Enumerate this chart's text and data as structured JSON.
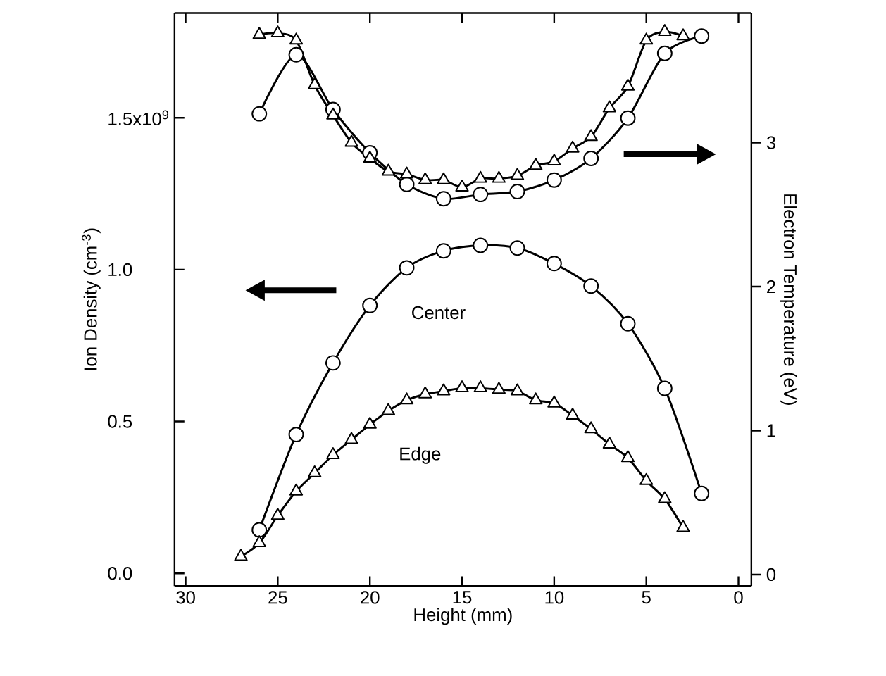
{
  "chart_data": {
    "type": "line",
    "xlabel": "Height (mm)",
    "ylabel": "Ion Density (cm$^{-3}$)",
    "y2label": "Electron Temperature (eV)",
    "xlim": [
      30.6,
      -0.7
    ],
    "xticks": [
      30,
      25,
      20,
      15,
      10,
      5,
      0
    ],
    "ylim": [
      -0.042,
      1.845
    ],
    "yticks": [
      {
        "value": 0,
        "label": "0.0"
      },
      {
        "value": 0.5,
        "label": "0.5"
      },
      {
        "value": 1,
        "label": "1.0"
      },
      {
        "value": 1.5,
        "label": "1.5"
      }
    ],
    "annotations": [
      "x10$^{9}$"
    ],
    "y2lim": [
      -0.08,
      3.9
    ],
    "y2ticks": [
      0,
      1,
      2,
      3
    ],
    "series": [
      {
        "name": "Center",
        "color": "#000000",
        "marker": "circle",
        "x": [
          26,
          24,
          22,
          20,
          18,
          16,
          14,
          12,
          10,
          8,
          6,
          4,
          2
        ],
        "values": [
          0.143,
          0.457,
          0.693,
          0.882,
          1.006,
          1.062,
          1.08,
          1.071,
          1.02,
          0.946,
          0.822,
          0.609,
          0.263
        ]
      },
      {
        "name": "Edge",
        "color": "#000000",
        "marker": "triangle",
        "x": [
          27,
          26,
          25,
          24,
          23,
          22,
          21,
          20,
          19,
          18,
          17,
          16,
          15,
          14,
          13,
          12,
          11,
          10,
          9,
          8,
          7,
          6,
          5,
          4,
          3
        ],
        "values": [
          0.055,
          0.1,
          0.19,
          0.27,
          0.33,
          0.39,
          0.44,
          0.49,
          0.535,
          0.57,
          0.59,
          0.6,
          0.61,
          0.61,
          0.605,
          0.6,
          0.57,
          0.56,
          0.52,
          0.475,
          0.425,
          0.38,
          0.305,
          0.245,
          0.15
        ]
      },
      {
        "color": "#000000",
        "marker": "circle",
        "axis": "y2",
        "x": [
          26,
          24,
          22,
          20,
          18,
          16,
          14,
          12,
          10,
          8,
          6,
          4,
          2
        ],
        "values": [
          3.2,
          3.61,
          3.23,
          2.93,
          2.71,
          2.61,
          2.64,
          2.66,
          2.74,
          2.89,
          3.17,
          3.62,
          3.74
        ]
      },
      {
        "color": "#000000",
        "marker": "triangle",
        "axis": "y2",
        "x": [
          26,
          25,
          24,
          23,
          22,
          21,
          20,
          19,
          18,
          17,
          16,
          15,
          14,
          13,
          12,
          11,
          10,
          9,
          8,
          7,
          6,
          5,
          4,
          3
        ],
        "values": [
          3.75,
          3.76,
          3.71,
          3.4,
          3.19,
          3.0,
          2.89,
          2.8,
          2.78,
          2.74,
          2.74,
          2.69,
          2.75,
          2.75,
          2.77,
          2.84,
          2.87,
          2.96,
          3.04,
          3.24,
          3.39,
          3.71,
          3.77,
          3.74
        ]
      }
    ]
  }
}
